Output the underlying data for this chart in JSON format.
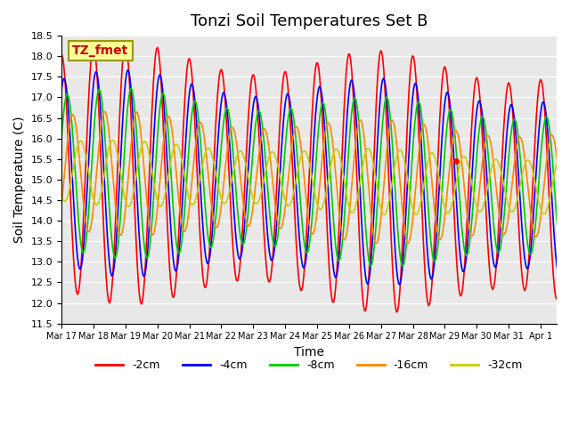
{
  "title": "Tonzi Soil Temperatures Set B",
  "xlabel": "Time",
  "ylabel": "Soil Temperature (C)",
  "ylim": [
    11.5,
    18.5
  ],
  "xlim": [
    0,
    15.5
  ],
  "x_tick_labels": [
    "Mar 17",
    "Mar 18",
    "Mar 19",
    "Mar 20",
    "Mar 21",
    "Mar 22",
    "Mar 23",
    "Mar 24",
    "Mar 25",
    "Mar 26",
    "Mar 27",
    "Mar 28",
    "Mar 29",
    "Mar 30",
    "Mar 31",
    "Apr 1"
  ],
  "series_labels": [
    "-2cm",
    "-4cm",
    "-8cm",
    "-16cm",
    "-32cm"
  ],
  "series_colors": [
    "#ff0000",
    "#0000ff",
    "#00cc00",
    "#ff8800",
    "#cccc00"
  ],
  "legend_label": "TZ_fmet",
  "legend_bg": "#ffff99",
  "legend_border": "#999900",
  "plot_bg": "#e8e8e8",
  "title_fontsize": 13,
  "axis_fontsize": 10,
  "tick_fontsize": 8,
  "n_points": 480,
  "days": 16,
  "phase_shifts": [
    0.0,
    0.08,
    0.18,
    0.35,
    0.6
  ],
  "amplitudes": [
    2.85,
    2.25,
    1.85,
    1.35,
    0.72
  ],
  "base_mean": 15.2,
  "base_slope": -0.025
}
